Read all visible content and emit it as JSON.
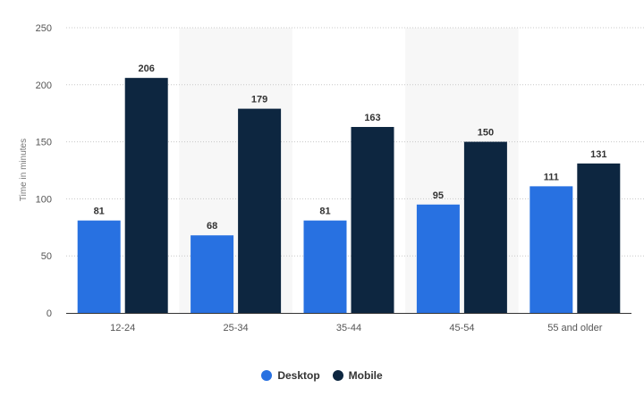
{
  "chart_data": {
    "type": "bar",
    "categories": [
      "12-24",
      "25-34",
      "35-44",
      "45-54",
      "55 and older"
    ],
    "series": [
      {
        "name": "Desktop",
        "color": "#2871e1",
        "values": [
          81,
          68,
          81,
          95,
          111
        ]
      },
      {
        "name": "Mobile",
        "color": "#0d2640",
        "values": [
          206,
          179,
          163,
          150,
          131
        ]
      }
    ],
    "ylabel": "Time in minutes",
    "ylim": [
      0,
      250
    ],
    "yticks": [
      0,
      50,
      100,
      150,
      200,
      250
    ],
    "grid": true,
    "legend": "bottom-center",
    "alternate_band_color": "#f7f7f7"
  }
}
